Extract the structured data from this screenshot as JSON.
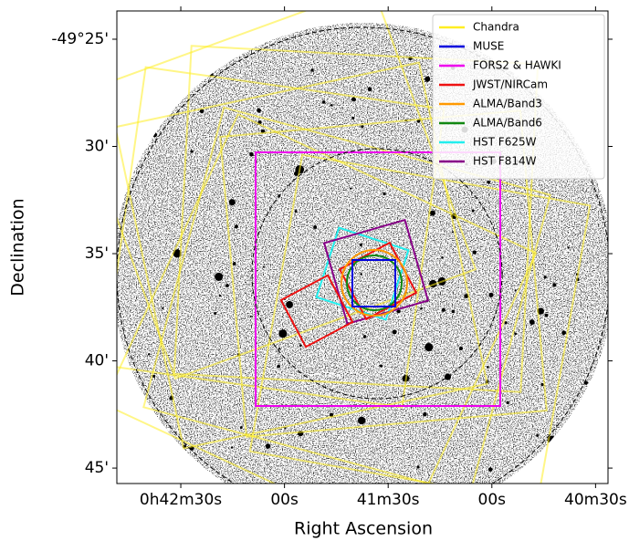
{
  "chart_data": {
    "type": "footprint",
    "xlabel": "Right Ascension",
    "ylabel": "Declination",
    "xlim": [
      2568.5,
      2426.4
    ],
    "xticks": [
      {
        "value": 2550,
        "label": "0h42m30s"
      },
      {
        "value": 2520,
        "label": "00s"
      },
      {
        "value": 2490,
        "label": "41m30s"
      },
      {
        "value": 2460,
        "label": "00s"
      },
      {
        "value": 2430,
        "label": "40m30s"
      }
    ],
    "ylim": [
      -49.762,
      -49.3947
    ],
    "yticks": [
      {
        "value": -49.41667,
        "label": "-49°25'"
      },
      {
        "value": -49.5,
        "label": "30'"
      },
      {
        "value": -49.58333,
        "label": "35'"
      },
      {
        "value": -49.66667,
        "label": "40'"
      },
      {
        "value": -49.75,
        "label": "45'"
      }
    ],
    "series": [
      {
        "name": "Chandra",
        "color": "#ffee22"
      },
      {
        "name": "MUSE",
        "color": "#0000dd"
      },
      {
        "name": "FORS2 & HAWKI",
        "color": "#ee00ee"
      },
      {
        "name": "JWST/NIRCam",
        "color": "#ee1111"
      },
      {
        "name": "ALMA/Band3",
        "color": "#ff9900"
      },
      {
        "name": "ALMA/Band6",
        "color": "#118811"
      },
      {
        "name": "HST F625W",
        "color": "#22eeee"
      },
      {
        "name": "HST F814W",
        "color": "#880088"
      }
    ],
    "legend": "upper right"
  }
}
